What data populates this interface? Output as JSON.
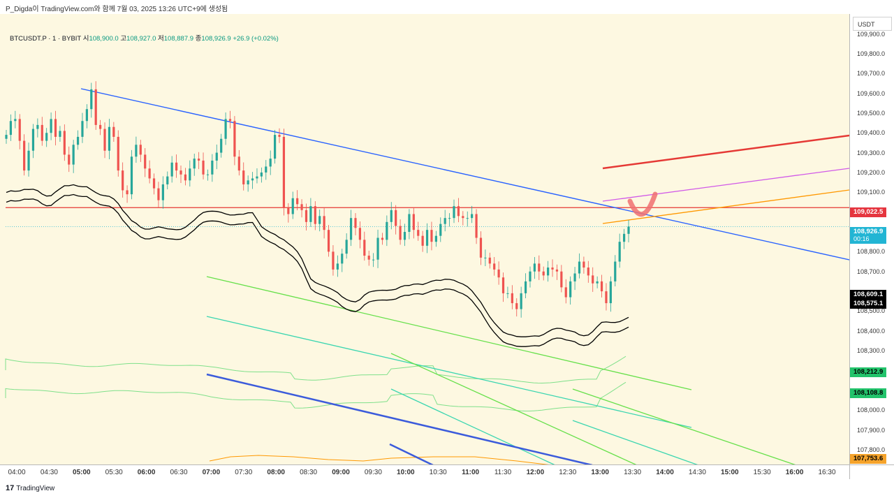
{
  "header": {
    "caption": "P_Digda이 TradingView.com와 함께 7월 03, 2025 13:26 UTC+9에 생성됨"
  },
  "legend": {
    "symbol": "BTCUSDT.P · 1 · BYBIT",
    "open_label": "시",
    "open": "108,900.0",
    "high_label": "고",
    "high": "108,927.0",
    "low_label": "저",
    "low": "108,887.9",
    "close_label": "종",
    "close": "108,926.9",
    "change": "+26.9 (+0.02%)"
  },
  "price_axis": {
    "unit": "USDT",
    "ticks": [
      "109,900.0",
      "109,800.0",
      "109,700.0",
      "109,600.0",
      "109,500.0",
      "109,400.0",
      "109,300.0",
      "109,200.0",
      "109,100.0",
      "108,800.0",
      "108,700.0",
      "108,500.0",
      "108,400.0",
      "108,300.0",
      "108,000.0",
      "107,900.0",
      "107,800.0"
    ],
    "labels": {
      "red_level": "109,022.5",
      "last_price": "108,926.9",
      "countdown": "00:16",
      "band_upper": "108,609.1",
      "band_lower": "108,575.1",
      "green_upper": "108,212.9",
      "green_lower": "108,108.8",
      "orange_level": "107,753.6"
    }
  },
  "time_axis": {
    "ticks": [
      "04:00",
      "04:30",
      "05:00",
      "05:30",
      "06:00",
      "06:30",
      "07:00",
      "07:30",
      "08:00",
      "08:30",
      "09:00",
      "09:30",
      "10:00",
      "10:30",
      "11:00",
      "11:30",
      "12:00",
      "12:30",
      "13:00",
      "13:30",
      "14:00",
      "14:30",
      "15:00",
      "15:30",
      "16:00",
      "16:30"
    ],
    "bold": [
      "05:00",
      "06:00",
      "07:00",
      "08:00",
      "09:00",
      "10:00",
      "11:00",
      "12:00",
      "13:00",
      "14:00",
      "15:00",
      "16:00"
    ]
  },
  "colors": {
    "background": "#fdf8e1",
    "candle_up": "#26a69a",
    "candle_down": "#ef5350",
    "trend_blue": "#2962ff",
    "level_red": "#e53935",
    "orange": "#ff9800",
    "magenta": "#d159e8",
    "green": "#66e04a",
    "teal": "#3bd6a6",
    "envelope": "#000000",
    "last_price_label": "#22b5d4",
    "red_label": "#e5353f",
    "green_label": "#22c36b",
    "orange_label": "#f5a32b"
  },
  "candles": {
    "description_shown": "1-minute BTCUSDT candlesticks",
    "path_close": [
      109390,
      109460,
      109470,
      109360,
      109210,
      109310,
      109420,
      109440,
      109360,
      109400,
      109470,
      109380,
      109410,
      109290,
      109240,
      109340,
      109380,
      109460,
      109520,
      109620,
      109440,
      109420,
      109310,
      109430,
      109380,
      109210,
      109110,
      109090,
      109280,
      109340,
      109290,
      109220,
      109170,
      109120,
      109060,
      109140,
      109180,
      109250,
      109210,
      109190,
      109160,
      109220,
      109270,
      109260,
      109190,
      109190,
      109260,
      109300,
      109370,
      109470,
      109460,
      109280,
      109210,
      109140,
      109160,
      109170,
      109180,
      109200,
      109230,
      109270,
      109390,
      109380,
      109020,
      108990,
      109070,
      109040,
      109010,
      108950,
      109030,
      108940,
      108980,
      108910,
      108800,
      108710,
      108740,
      108790,
      108860,
      108970,
      108920,
      108860,
      108780,
      108760,
      108760,
      108870,
      108860,
      108950,
      109010,
      108930,
      108860,
      108900,
      108990,
      108910,
      108880,
      108830,
      108910,
      108850,
      108880,
      108940,
      108970,
      108970,
      109030,
      108980,
      108970,
      108970,
      108990,
      108870,
      108770,
      108770,
      108740,
      108710,
      108670,
      108590,
      108590,
      108540,
      108510,
      108590,
      108650,
      108700,
      108740,
      108700,
      108680,
      108720,
      108710,
      108700,
      108620,
      108570,
      108650,
      108690,
      108750,
      108720,
      108680,
      108640,
      108650,
      108600,
      108540,
      108650,
      108750,
      108850,
      108890,
      108927
    ]
  }
}
